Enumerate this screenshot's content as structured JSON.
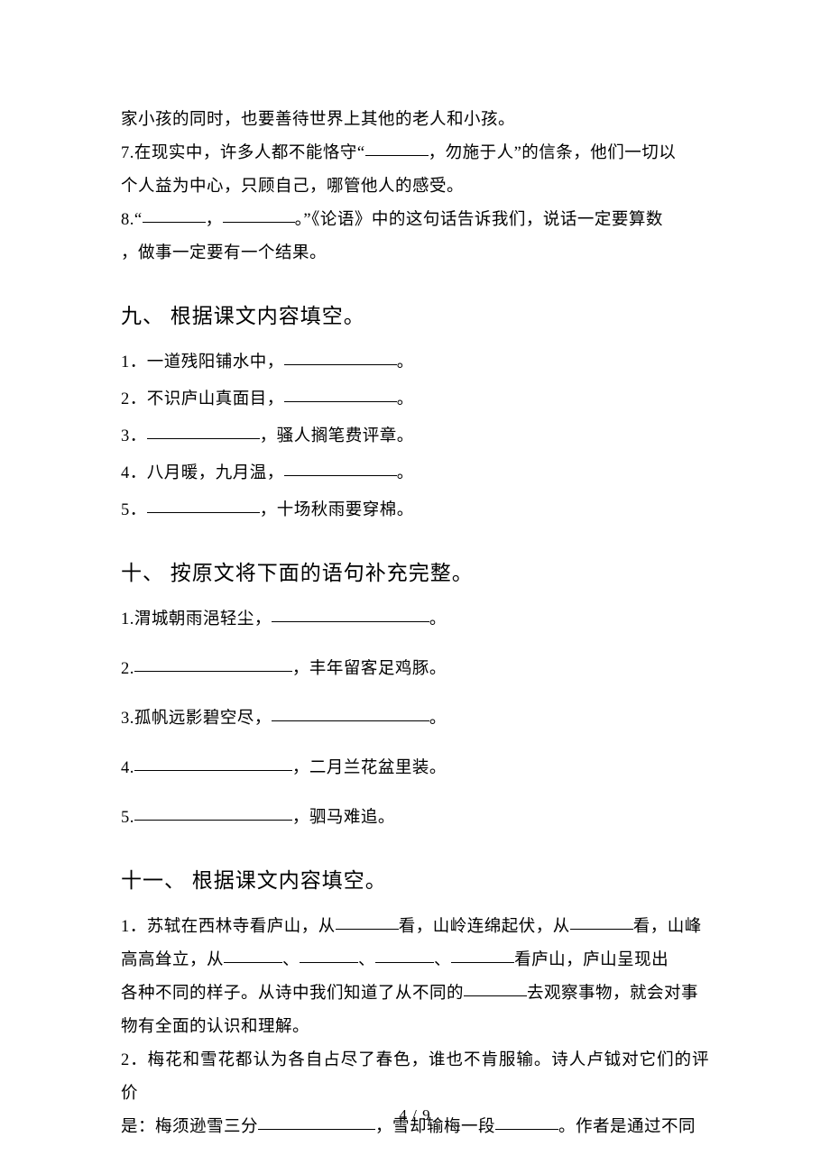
{
  "top_paragraphs": {
    "line1": "家小孩的同时，也要善待世界上其他的老人和小孩。",
    "q7_prefix": "7.在现实中，许多人都不能恪守“",
    "q7_mid": "，勿施于人”的信条，他们一切以",
    "q7_line2": "个人益为中心，只顾自己，哪管他人的感受。",
    "q8_prefix": "8.“",
    "q8_comma": "，",
    "q8_mid2": "。”《论语》中的这句话告诉我们，说话一定要算数",
    "q8_line2": "，做事一定要有一个结果。"
  },
  "section9": {
    "heading": "九、 根据课文内容填空。",
    "items": {
      "i1_prefix": "1．一道残阳铺水中，",
      "i1_suffix": "。",
      "i2_prefix": "2．不识庐山真面目，",
      "i2_suffix": "。",
      "i3_prefix": "3．",
      "i3_suffix": "，骚人搁笔费评章。",
      "i4_prefix": "4．八月暖，九月温，",
      "i4_suffix": "。",
      "i5_prefix": "5．",
      "i5_suffix": "，十场秋雨要穿棉。"
    }
  },
  "section10": {
    "heading": "十、 按原文将下面的语句补充完整。",
    "items": {
      "i1_prefix": "1.渭城朝雨浥轻尘，",
      "i1_suffix": "。",
      "i2_prefix": "2.",
      "i2_suffix": "，丰年留客足鸡豚。",
      "i3_prefix": "3.孤帆远影碧空尽，",
      "i3_suffix": "。",
      "i4_prefix": "4.",
      "i4_suffix": "，二月兰花盆里装。",
      "i5_prefix": "5.",
      "i5_suffix": "，驷马难追。"
    }
  },
  "section11": {
    "heading": "十一、 根据课文内容填空。",
    "q1": {
      "p1": "1．苏轼在西林寺看庐山，从",
      "p2": "看，山岭连绵起伏，从",
      "p3": "看，山峰",
      "line2_p1": "高高耸立，从",
      "sep": "、",
      "line2_p2": "看庐山，庐山呈现出",
      "line3_p1": "各种不同的样子。从诗中我们知道了从不同的",
      "line3_p2": "去观察事物，就会对事",
      "line4": "物有全面的认识和理解。"
    },
    "q2": {
      "line1": "2．梅花和雪花都认为各自占尽了春色，谁也不肯服输。诗人卢钺对它们的评价",
      "line2_p1": "是：梅须逊雪三分",
      "line2_p2": "，雪却输梅一段",
      "line2_p3": "。作者是通过不同"
    }
  },
  "page_number": "4 / 9"
}
